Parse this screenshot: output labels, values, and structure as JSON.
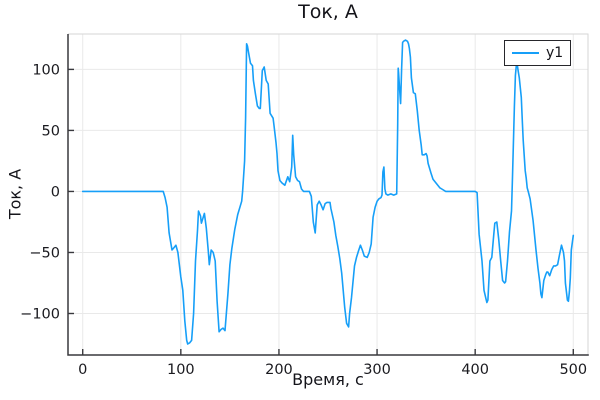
{
  "title": "Ток, А",
  "x_label": "Время, с",
  "y_label": "Ток, А",
  "legend": {
    "label": "y1"
  },
  "colors": {
    "series": "#169ff8",
    "grid": "#e9e9e9",
    "spine_dark": "#38383d",
    "spine_light": "#d6d6d6",
    "tick_text": "#1a1a1f"
  },
  "chart_data": {
    "type": "line",
    "title": "Ток, А",
    "xlabel": "Время, с",
    "ylabel": "Ток, А",
    "grid": true,
    "legend_position": "top-right",
    "xlim": [
      -15,
      515
    ],
    "ylim": [
      -134,
      129
    ],
    "x_ticks": [
      0,
      100,
      200,
      300,
      400,
      500
    ],
    "x_tick_labels": [
      "0",
      "100",
      "200",
      "300",
      "400",
      "500"
    ],
    "y_ticks": [
      -100,
      -50,
      0,
      50,
      100
    ],
    "y_tick_labels": [
      "−100",
      "−50",
      "0",
      "50",
      "100"
    ],
    "series": [
      {
        "name": "y1",
        "color": "#169ff8",
        "points": [
          [
            0,
            0
          ],
          [
            82,
            0
          ],
          [
            84,
            -5
          ],
          [
            86,
            -13
          ],
          [
            88,
            -34
          ],
          [
            91,
            -48
          ],
          [
            93,
            -46
          ],
          [
            95,
            -44
          ],
          [
            97,
            -50
          ],
          [
            100,
            -70
          ],
          [
            102,
            -81
          ],
          [
            104,
            -106
          ],
          [
            106,
            -122
          ],
          [
            107,
            -125
          ],
          [
            109,
            -124
          ],
          [
            111,
            -122
          ],
          [
            113,
            -100
          ],
          [
            115,
            -57
          ],
          [
            117,
            -32
          ],
          [
            118,
            -16
          ],
          [
            120,
            -20
          ],
          [
            121,
            -26
          ],
          [
            124,
            -18
          ],
          [
            126,
            -30
          ],
          [
            128,
            -49
          ],
          [
            129,
            -60
          ],
          [
            131,
            -48
          ],
          [
            133,
            -50
          ],
          [
            135,
            -57
          ],
          [
            137,
            -90
          ],
          [
            139,
            -115
          ],
          [
            141,
            -113
          ],
          [
            143,
            -112
          ],
          [
            145,
            -114
          ],
          [
            148,
            -84
          ],
          [
            150,
            -60
          ],
          [
            152,
            -47
          ],
          [
            155,
            -31
          ],
          [
            158,
            -19
          ],
          [
            162,
            -8
          ],
          [
            163,
            0
          ],
          [
            165,
            25
          ],
          [
            166,
            60
          ],
          [
            167,
            121
          ],
          [
            168,
            119
          ],
          [
            169,
            114
          ],
          [
            171,
            105
          ],
          [
            173,
            103
          ],
          [
            174,
            91
          ],
          [
            176,
            80
          ],
          [
            178,
            70
          ],
          [
            180,
            68
          ],
          [
            181,
            68
          ],
          [
            183,
            99
          ],
          [
            185,
            102
          ],
          [
            187,
            91
          ],
          [
            189,
            88
          ],
          [
            191,
            64
          ],
          [
            194,
            60
          ],
          [
            195,
            54
          ],
          [
            197,
            40
          ],
          [
            198,
            31
          ],
          [
            199,
            17
          ],
          [
            201,
            9
          ],
          [
            203,
            7
          ],
          [
            206,
            5
          ],
          [
            209,
            12
          ],
          [
            211,
            8
          ],
          [
            213,
            20
          ],
          [
            214,
            46
          ],
          [
            215,
            30
          ],
          [
            217,
            12
          ],
          [
            219,
            9
          ],
          [
            221,
            8
          ],
          [
            223,
            2
          ],
          [
            225,
            0
          ],
          [
            231,
            0
          ],
          [
            233,
            -4
          ],
          [
            235,
            -25
          ],
          [
            237,
            -34
          ],
          [
            239,
            -11
          ],
          [
            241,
            -8
          ],
          [
            243,
            -11
          ],
          [
            245,
            -15
          ],
          [
            247,
            -10
          ],
          [
            249,
            -9
          ],
          [
            252,
            -9
          ],
          [
            253,
            -14
          ],
          [
            256,
            -25
          ],
          [
            258,
            -36
          ],
          [
            260,
            -45
          ],
          [
            262,
            -55
          ],
          [
            264,
            -67
          ],
          [
            267,
            -95
          ],
          [
            269,
            -108
          ],
          [
            271,
            -111
          ],
          [
            272,
            -100
          ],
          [
            274,
            -87
          ],
          [
            277,
            -61
          ],
          [
            279,
            -54
          ],
          [
            281,
            -49
          ],
          [
            283,
            -44
          ],
          [
            285,
            -48
          ],
          [
            287,
            -53
          ],
          [
            290,
            -54
          ],
          [
            292,
            -50
          ],
          [
            294,
            -43
          ],
          [
            296,
            -21
          ],
          [
            298,
            -13
          ],
          [
            300,
            -8
          ],
          [
            302,
            -6
          ],
          [
            304,
            -5
          ],
          [
            305,
            -3
          ],
          [
            306,
            16
          ],
          [
            307,
            20
          ],
          [
            308,
            2
          ],
          [
            309,
            -2
          ],
          [
            311,
            -3
          ],
          [
            314,
            -2
          ],
          [
            317,
            -3
          ],
          [
            320,
            -2
          ],
          [
            321,
            55
          ],
          [
            321.5,
            101
          ],
          [
            322,
            97
          ],
          [
            323,
            84
          ],
          [
            324,
            72
          ],
          [
            325,
            100
          ],
          [
            326,
            122
          ],
          [
            327,
            123
          ],
          [
            329,
            124
          ],
          [
            331,
            123
          ],
          [
            332,
            121
          ],
          [
            333,
            117
          ],
          [
            334,
            110
          ],
          [
            335,
            93
          ],
          [
            337,
            81
          ],
          [
            339,
            80
          ],
          [
            341,
            66
          ],
          [
            343,
            50
          ],
          [
            345,
            38
          ],
          [
            346,
            30
          ],
          [
            348,
            30
          ],
          [
            350,
            31
          ],
          [
            351,
            29
          ],
          [
            352,
            23
          ],
          [
            355,
            15
          ],
          [
            357,
            10
          ],
          [
            361,
            6
          ],
          [
            364,
            3
          ],
          [
            366,
            2
          ],
          [
            370,
            0
          ],
          [
            380,
            0
          ],
          [
            390,
            0
          ],
          [
            400,
            0
          ],
          [
            402,
            -1
          ],
          [
            404,
            -35
          ],
          [
            407,
            -57
          ],
          [
            409,
            -81
          ],
          [
            411,
            -88
          ],
          [
            412,
            -91
          ],
          [
            413,
            -89
          ],
          [
            415,
            -57
          ],
          [
            417,
            -54
          ],
          [
            419,
            -35
          ],
          [
            420,
            -26
          ],
          [
            422,
            -25
          ],
          [
            424,
            -39
          ],
          [
            426,
            -57
          ],
          [
            428,
            -73
          ],
          [
            430,
            -75
          ],
          [
            431,
            -74
          ],
          [
            433,
            -57
          ],
          [
            435,
            -33
          ],
          [
            437,
            -16
          ],
          [
            438,
            12
          ],
          [
            440,
            70
          ],
          [
            441,
            95
          ],
          [
            442,
            104
          ],
          [
            443,
            103
          ],
          [
            444,
            98
          ],
          [
            445,
            93
          ],
          [
            447,
            77
          ],
          [
            448,
            58
          ],
          [
            449,
            42
          ],
          [
            451,
            17
          ],
          [
            452,
            11
          ],
          [
            453,
            3
          ],
          [
            454,
            0
          ],
          [
            456,
            -6
          ],
          [
            459,
            -24
          ],
          [
            462,
            -48
          ],
          [
            464,
            -63
          ],
          [
            466,
            -75
          ],
          [
            467,
            -84
          ],
          [
            468,
            -87
          ],
          [
            470,
            -73
          ],
          [
            472,
            -68
          ],
          [
            473,
            -66
          ],
          [
            474,
            -66
          ],
          [
            476,
            -69
          ],
          [
            478,
            -64
          ],
          [
            480,
            -61
          ],
          [
            482,
            -61
          ],
          [
            484,
            -60
          ],
          [
            486,
            -52
          ],
          [
            488,
            -44
          ],
          [
            490,
            -50
          ],
          [
            491,
            -57
          ],
          [
            492,
            -75
          ],
          [
            494,
            -89
          ],
          [
            495,
            -90
          ],
          [
            496,
            -82
          ],
          [
            497,
            -71
          ],
          [
            498,
            -48
          ],
          [
            500,
            -36
          ]
        ]
      }
    ]
  }
}
